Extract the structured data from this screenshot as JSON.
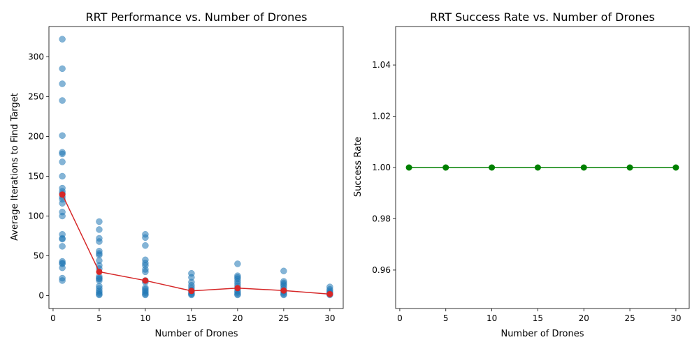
{
  "chart_data": [
    {
      "type": "scatter",
      "title": "RRT Performance vs. Number of Drones",
      "xlabel": "Number of Drones",
      "ylabel": "Average Iterations to Find Target",
      "xlim": [
        -0.45,
        31.45
      ],
      "ylim": [
        -16.1,
        337.9
      ],
      "xticks": [
        0,
        5,
        10,
        15,
        20,
        25,
        30
      ],
      "yticks": [
        0,
        50,
        100,
        150,
        200,
        250,
        300
      ],
      "grid": false,
      "scatter_color": "#1f77b4",
      "mean_color": "#d62728",
      "series": [
        {
          "kind": "scatter",
          "points": [
            [
              1,
              322
            ],
            [
              1,
              285
            ],
            [
              1,
              266
            ],
            [
              1,
              245
            ],
            [
              1,
              201
            ],
            [
              1,
              180
            ],
            [
              1,
              178
            ],
            [
              1,
              168
            ],
            [
              1,
              150
            ],
            [
              1,
              135
            ],
            [
              1,
              131
            ],
            [
              1,
              128
            ],
            [
              1,
              124
            ],
            [
              1,
              121
            ],
            [
              1,
              116
            ],
            [
              1,
              105
            ],
            [
              1,
              100
            ],
            [
              1,
              77
            ],
            [
              1,
              72
            ],
            [
              1,
              71
            ],
            [
              1,
              62
            ],
            [
              1,
              43
            ],
            [
              1,
              41
            ],
            [
              1,
              40
            ],
            [
              1,
              35
            ],
            [
              1,
              22
            ],
            [
              1,
              19
            ],
            [
              5,
              93
            ],
            [
              5,
              83
            ],
            [
              5,
              72
            ],
            [
              5,
              68
            ],
            [
              5,
              56
            ],
            [
              5,
              53
            ],
            [
              5,
              51
            ],
            [
              5,
              44
            ],
            [
              5,
              38
            ],
            [
              5,
              34
            ],
            [
              5,
              24
            ],
            [
              5,
              22
            ],
            [
              5,
              21
            ],
            [
              5,
              19
            ],
            [
              5,
              12
            ],
            [
              5,
              9
            ],
            [
              5,
              6
            ],
            [
              5,
              4
            ],
            [
              5,
              2
            ],
            [
              5,
              1
            ],
            [
              10,
              77
            ],
            [
              10,
              73
            ],
            [
              10,
              63
            ],
            [
              10,
              45
            ],
            [
              10,
              41
            ],
            [
              10,
              38
            ],
            [
              10,
              33
            ],
            [
              10,
              30
            ],
            [
              10,
              19
            ],
            [
              10,
              17
            ],
            [
              10,
              10
            ],
            [
              10,
              8
            ],
            [
              10,
              6
            ],
            [
              10,
              4
            ],
            [
              10,
              2
            ],
            [
              10,
              1
            ],
            [
              15,
              28
            ],
            [
              15,
              23
            ],
            [
              15,
              17
            ],
            [
              15,
              13
            ],
            [
              15,
              10
            ],
            [
              15,
              7
            ],
            [
              15,
              5
            ],
            [
              15,
              3
            ],
            [
              15,
              2
            ],
            [
              15,
              1
            ],
            [
              20,
              40
            ],
            [
              20,
              25
            ],
            [
              20,
              23
            ],
            [
              20,
              21
            ],
            [
              20,
              18
            ],
            [
              20,
              15
            ],
            [
              20,
              12
            ],
            [
              20,
              9
            ],
            [
              20,
              6
            ],
            [
              20,
              4
            ],
            [
              20,
              2
            ],
            [
              20,
              1
            ],
            [
              25,
              31
            ],
            [
              25,
              18
            ],
            [
              25,
              16
            ],
            [
              25,
              14
            ],
            [
              25,
              12
            ],
            [
              25,
              9
            ],
            [
              25,
              6
            ],
            [
              25,
              4
            ],
            [
              25,
              2
            ],
            [
              25,
              1
            ],
            [
              30,
              11
            ],
            [
              30,
              8
            ],
            [
              30,
              6
            ],
            [
              30,
              4
            ],
            [
              30,
              3
            ],
            [
              30,
              2
            ],
            [
              30,
              1
            ]
          ]
        },
        {
          "kind": "line",
          "x": [
            1,
            5,
            10,
            15,
            20,
            25,
            30
          ],
          "y": [
            127,
            30,
            19,
            6,
            9.5,
            6.5,
            2
          ]
        }
      ]
    },
    {
      "type": "line",
      "title": "RRT Success Rate vs. Number of Drones",
      "xlabel": "Number of Drones",
      "ylabel": "Success Rate",
      "xlim": [
        -0.45,
        31.45
      ],
      "ylim": [
        0.945,
        1.055
      ],
      "xticks": [
        0,
        5,
        10,
        15,
        20,
        25,
        30
      ],
      "yticks": [
        0.96,
        0.98,
        1.0,
        1.02,
        1.04
      ],
      "yticklabels": [
        "0.96",
        "0.98",
        "1.00",
        "1.02",
        "1.04"
      ],
      "grid": false,
      "line_color": "#008000",
      "series": [
        {
          "kind": "line",
          "x": [
            1,
            5,
            10,
            15,
            20,
            25,
            30
          ],
          "y": [
            1.0,
            1.0,
            1.0,
            1.0,
            1.0,
            1.0,
            1.0
          ]
        }
      ]
    }
  ]
}
